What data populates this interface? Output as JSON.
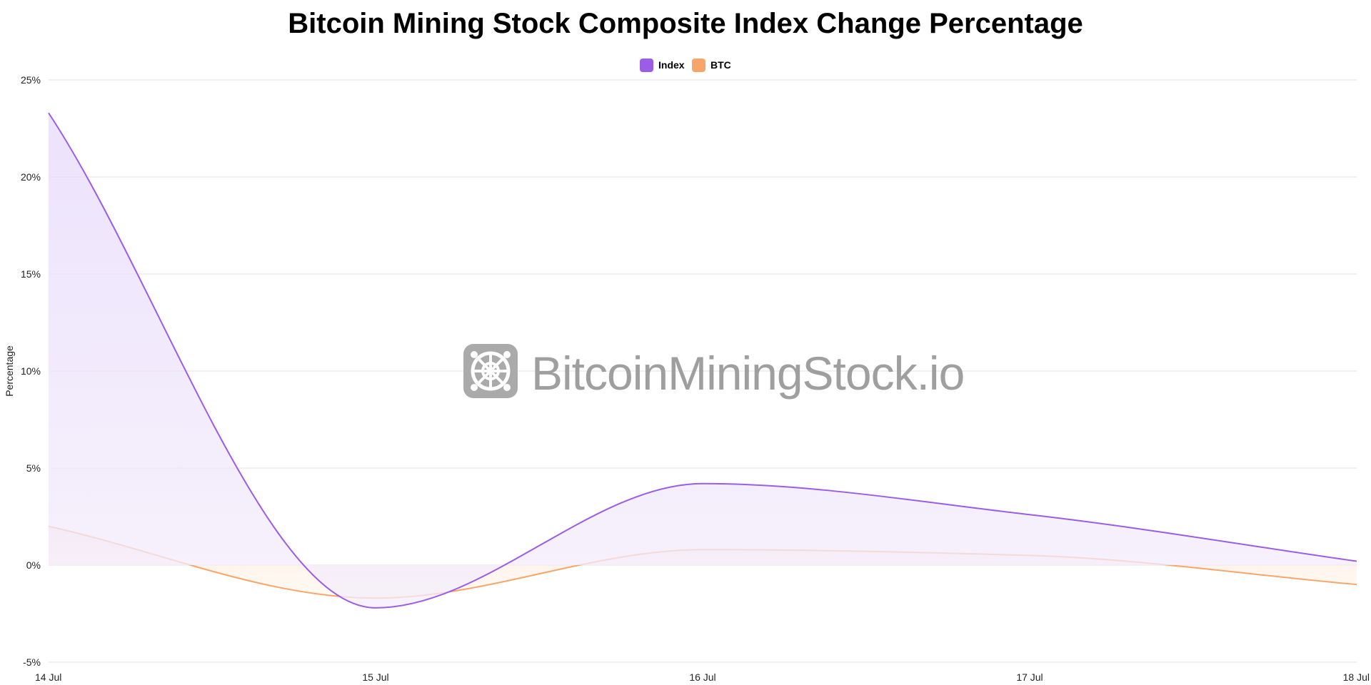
{
  "chart_data": {
    "type": "area",
    "title": "Bitcoin Mining Stock Composite Index Change Percentage",
    "xlabel": "",
    "ylabel": "Percentage",
    "ylim": [
      -5,
      25
    ],
    "yticks": [
      {
        "value": 25,
        "label": "25%"
      },
      {
        "value": 20,
        "label": "20%"
      },
      {
        "value": 15,
        "label": "15%"
      },
      {
        "value": 10,
        "label": "10%"
      },
      {
        "value": 5,
        "label": "5%"
      },
      {
        "value": 0,
        "label": "0%"
      },
      {
        "value": -5,
        "label": "-5%"
      }
    ],
    "categories": [
      "14 Jul",
      "15 Jul",
      "16 Jul",
      "17 Jul",
      "18 Jul"
    ],
    "grid": true,
    "legend_position": "top-center",
    "series": [
      {
        "name": "Index",
        "color": "#9b5de5",
        "fill_top": "#e6d9fb",
        "fill_bottom": "#f4eefc",
        "values": [
          23.3,
          -2.2,
          4.2,
          2.6,
          0.2
        ]
      },
      {
        "name": "BTC",
        "color": "#f7a66b",
        "fill_top": "#fbe0e0",
        "fill_bottom": "#fff7e6",
        "values": [
          2.0,
          -1.7,
          0.8,
          0.5,
          -1.0
        ]
      }
    ],
    "watermark": "BitcoinMiningStock.io"
  }
}
